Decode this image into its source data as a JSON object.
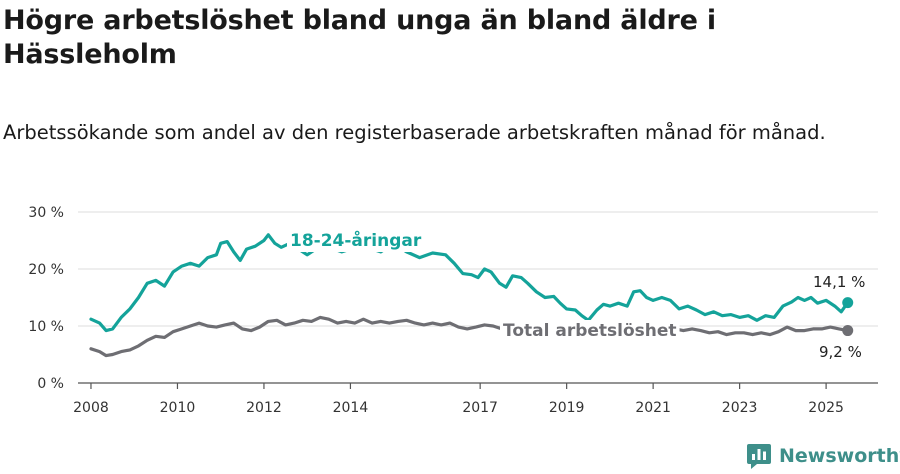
{
  "title": "Högre arbetslöshet bland unga än bland äldre i Hässleholm",
  "subtitle": "Arbetssökande som andel av den registerbaserade arbetskraften månad för månad.",
  "brand": {
    "name": "Newsworthy",
    "icon": "newsworthy-logo-icon"
  },
  "colors": {
    "young": "#14a39a",
    "total": "#6e6e73",
    "grid": "#dcdcdc"
  },
  "chart_data": {
    "type": "line",
    "title": "Högre arbetslöshet bland unga än bland äldre i Hässleholm",
    "ylim": [
      0,
      30
    ],
    "xlim": [
      2007.7,
      2026.2
    ],
    "yticks": [
      0,
      10,
      20,
      30
    ],
    "ytick_labels": [
      "0 %",
      "10 %",
      "20 %",
      "30 %"
    ],
    "xticks": [
      2008,
      2010,
      2012,
      2014,
      2017,
      2019,
      2021,
      2023,
      2025
    ],
    "xtick_labels": [
      "2008",
      "2010",
      "2012",
      "2014",
      "2017",
      "2019",
      "2021",
      "2023",
      "2025"
    ],
    "grid": true,
    "series": [
      {
        "name": "18-24-åringar",
        "color": "#14a39a",
        "end_label": "14,1 %",
        "points": [
          [
            2008.0,
            11.2
          ],
          [
            2008.2,
            10.5
          ],
          [
            2008.35,
            9.2
          ],
          [
            2008.5,
            9.5
          ],
          [
            2008.7,
            11.5
          ],
          [
            2008.9,
            13.0
          ],
          [
            2009.1,
            15.0
          ],
          [
            2009.3,
            17.5
          ],
          [
            2009.5,
            18.0
          ],
          [
            2009.7,
            17.0
          ],
          [
            2009.9,
            19.5
          ],
          [
            2010.1,
            20.5
          ],
          [
            2010.3,
            21.0
          ],
          [
            2010.5,
            20.5
          ],
          [
            2010.7,
            22.0
          ],
          [
            2010.9,
            22.5
          ],
          [
            2011.0,
            24.5
          ],
          [
            2011.15,
            24.8
          ],
          [
            2011.3,
            23.0
          ],
          [
            2011.45,
            21.5
          ],
          [
            2011.6,
            23.5
          ],
          [
            2011.8,
            24.0
          ],
          [
            2012.0,
            25.0
          ],
          [
            2012.1,
            26.0
          ],
          [
            2012.25,
            24.5
          ],
          [
            2012.4,
            23.8
          ],
          [
            2012.6,
            24.5
          ],
          [
            2012.8,
            23.5
          ],
          [
            2013.0,
            22.5
          ],
          [
            2013.2,
            23.5
          ],
          [
            2013.5,
            23.8
          ],
          [
            2013.8,
            23.0
          ],
          [
            2014.0,
            23.5
          ],
          [
            2014.3,
            24.0
          ],
          [
            2014.7,
            23.0
          ],
          [
            2015.0,
            24.5
          ],
          [
            2015.3,
            23.0
          ],
          [
            2015.6,
            22.0
          ],
          [
            2015.9,
            22.8
          ],
          [
            2016.2,
            22.5
          ],
          [
            2016.4,
            21.0
          ],
          [
            2016.6,
            19.2
          ],
          [
            2016.8,
            19.0
          ],
          [
            2016.95,
            18.5
          ],
          [
            2017.1,
            20.0
          ],
          [
            2017.25,
            19.5
          ],
          [
            2017.45,
            17.5
          ],
          [
            2017.6,
            16.8
          ],
          [
            2017.75,
            18.8
          ],
          [
            2017.95,
            18.5
          ],
          [
            2018.1,
            17.5
          ],
          [
            2018.3,
            16.0
          ],
          [
            2018.5,
            15.0
          ],
          [
            2018.7,
            15.2
          ],
          [
            2018.85,
            14.0
          ],
          [
            2019.0,
            13.0
          ],
          [
            2019.2,
            12.8
          ],
          [
            2019.35,
            11.8
          ],
          [
            2019.5,
            11.0
          ],
          [
            2019.7,
            12.8
          ],
          [
            2019.85,
            13.8
          ],
          [
            2020.0,
            13.5
          ],
          [
            2020.2,
            14.0
          ],
          [
            2020.4,
            13.5
          ],
          [
            2020.55,
            16.0
          ],
          [
            2020.7,
            16.2
          ],
          [
            2020.85,
            15.0
          ],
          [
            2021.0,
            14.5
          ],
          [
            2021.2,
            15.0
          ],
          [
            2021.4,
            14.5
          ],
          [
            2021.6,
            13.0
          ],
          [
            2021.8,
            13.5
          ],
          [
            2022.0,
            12.8
          ],
          [
            2022.2,
            12.0
          ],
          [
            2022.4,
            12.5
          ],
          [
            2022.6,
            11.8
          ],
          [
            2022.8,
            12.0
          ],
          [
            2023.0,
            11.5
          ],
          [
            2023.2,
            11.8
          ],
          [
            2023.4,
            11.0
          ],
          [
            2023.6,
            11.8
          ],
          [
            2023.8,
            11.5
          ],
          [
            2024.0,
            13.5
          ],
          [
            2024.2,
            14.2
          ],
          [
            2024.35,
            15.0
          ],
          [
            2024.5,
            14.5
          ],
          [
            2024.65,
            15.0
          ],
          [
            2024.8,
            14.0
          ],
          [
            2025.0,
            14.5
          ],
          [
            2025.2,
            13.5
          ],
          [
            2025.35,
            12.5
          ],
          [
            2025.5,
            14.1
          ]
        ]
      },
      {
        "name": "Total arbetslöshet",
        "color": "#6e6e73",
        "end_label": "9,2 %",
        "points": [
          [
            2008.0,
            6.0
          ],
          [
            2008.2,
            5.5
          ],
          [
            2008.35,
            4.8
          ],
          [
            2008.5,
            5.0
          ],
          [
            2008.7,
            5.5
          ],
          [
            2008.9,
            5.8
          ],
          [
            2009.1,
            6.5
          ],
          [
            2009.3,
            7.5
          ],
          [
            2009.5,
            8.2
          ],
          [
            2009.7,
            8.0
          ],
          [
            2009.9,
            9.0
          ],
          [
            2010.1,
            9.5
          ],
          [
            2010.3,
            10.0
          ],
          [
            2010.5,
            10.5
          ],
          [
            2010.7,
            10.0
          ],
          [
            2010.9,
            9.8
          ],
          [
            2011.1,
            10.2
          ],
          [
            2011.3,
            10.5
          ],
          [
            2011.5,
            9.5
          ],
          [
            2011.7,
            9.2
          ],
          [
            2011.9,
            9.8
          ],
          [
            2012.1,
            10.8
          ],
          [
            2012.3,
            11.0
          ],
          [
            2012.5,
            10.2
          ],
          [
            2012.7,
            10.5
          ],
          [
            2012.9,
            11.0
          ],
          [
            2013.1,
            10.8
          ],
          [
            2013.3,
            11.5
          ],
          [
            2013.5,
            11.2
          ],
          [
            2013.7,
            10.5
          ],
          [
            2013.9,
            10.8
          ],
          [
            2014.1,
            10.5
          ],
          [
            2014.3,
            11.2
          ],
          [
            2014.5,
            10.5
          ],
          [
            2014.7,
            10.8
          ],
          [
            2014.9,
            10.5
          ],
          [
            2015.1,
            10.8
          ],
          [
            2015.3,
            11.0
          ],
          [
            2015.5,
            10.5
          ],
          [
            2015.7,
            10.2
          ],
          [
            2015.9,
            10.5
          ],
          [
            2016.1,
            10.2
          ],
          [
            2016.3,
            10.5
          ],
          [
            2016.5,
            9.8
          ],
          [
            2016.7,
            9.5
          ],
          [
            2016.9,
            9.8
          ],
          [
            2017.1,
            10.2
          ],
          [
            2017.3,
            10.0
          ],
          [
            2017.5,
            9.5
          ],
          [
            2017.7,
            9.8
          ],
          [
            2017.9,
            9.2
          ],
          [
            2018.1,
            9.5
          ],
          [
            2018.3,
            9.0
          ],
          [
            2018.5,
            9.0
          ],
          [
            2018.7,
            8.8
          ],
          [
            2018.9,
            9.2
          ],
          [
            2019.1,
            9.0
          ],
          [
            2019.3,
            9.2
          ],
          [
            2019.5,
            9.5
          ],
          [
            2019.7,
            9.8
          ],
          [
            2019.9,
            9.5
          ],
          [
            2020.1,
            9.5
          ],
          [
            2020.3,
            9.8
          ],
          [
            2020.5,
            10.0
          ],
          [
            2020.7,
            10.2
          ],
          [
            2020.9,
            9.8
          ],
          [
            2021.1,
            9.8
          ],
          [
            2021.3,
            9.8
          ],
          [
            2021.5,
            9.5
          ],
          [
            2021.7,
            9.2
          ],
          [
            2021.9,
            9.5
          ],
          [
            2022.1,
            9.2
          ],
          [
            2022.3,
            8.8
          ],
          [
            2022.5,
            9.0
          ],
          [
            2022.7,
            8.5
          ],
          [
            2022.9,
            8.8
          ],
          [
            2023.1,
            8.8
          ],
          [
            2023.3,
            8.5
          ],
          [
            2023.5,
            8.8
          ],
          [
            2023.7,
            8.5
          ],
          [
            2023.9,
            9.0
          ],
          [
            2024.1,
            9.8
          ],
          [
            2024.3,
            9.2
          ],
          [
            2024.5,
            9.2
          ],
          [
            2024.7,
            9.5
          ],
          [
            2024.9,
            9.5
          ],
          [
            2025.1,
            9.8
          ],
          [
            2025.3,
            9.5
          ],
          [
            2025.5,
            9.2
          ]
        ]
      }
    ]
  }
}
